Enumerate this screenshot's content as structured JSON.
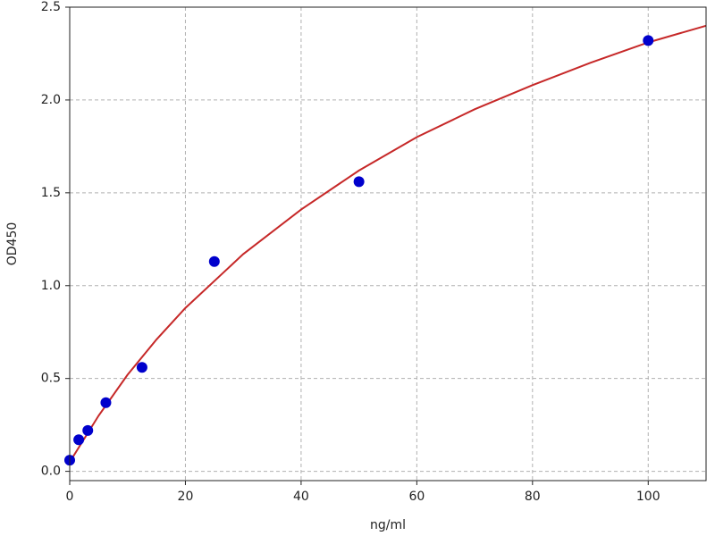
{
  "chart_data": {
    "type": "scatter",
    "x_label": "ng/ml",
    "y_label": "OD450",
    "xlim": [
      0,
      110
    ],
    "ylim": [
      -0.05,
      2.5
    ],
    "xticks": [
      0,
      20,
      40,
      60,
      80,
      100
    ],
    "yticks": [
      {
        "value": 0,
        "label": "0.0"
      },
      0.5,
      {
        "value": 1,
        "label": "1.0"
      },
      1.5,
      {
        "value": 2,
        "label": "2.0"
      },
      2.5
    ],
    "grid": true,
    "series": [
      {
        "color": "#c62828",
        "line": true,
        "x": [
          0,
          5,
          10,
          15,
          20,
          30,
          40,
          50,
          60,
          70,
          80,
          90,
          100,
          110
        ],
        "values": [
          0.05,
          0.3,
          0.52,
          0.71,
          0.88,
          1.17,
          1.41,
          1.62,
          1.8,
          1.95,
          2.08,
          2.2,
          2.31,
          2.4
        ]
      },
      {
        "color": "#0000cc",
        "marker": true,
        "x": [
          0,
          1.5625,
          3.125,
          6.25,
          12.5,
          25,
          50,
          100
        ],
        "values": [
          0.06,
          0.17,
          0.22,
          0.37,
          0.56,
          1.13,
          1.56,
          2.32
        ]
      }
    ]
  }
}
